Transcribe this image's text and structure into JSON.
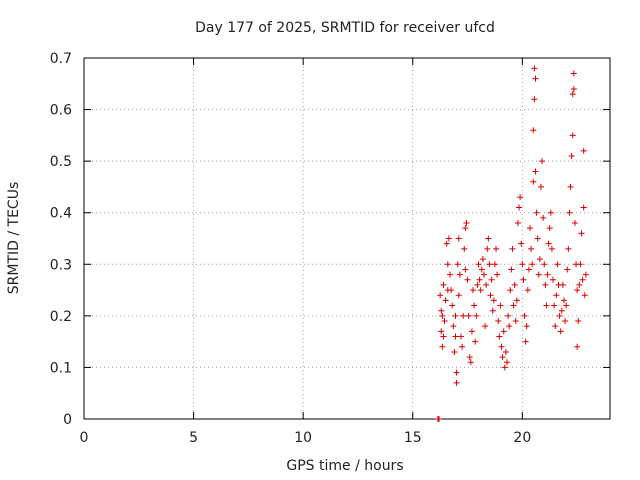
{
  "chart_data": {
    "type": "scatter",
    "title": "Day 177 of 2025, SRMTID for receiver ufcd",
    "xlabel": "GPS time / hours",
    "ylabel": "SRMTID / TECUs",
    "xlim": [
      0,
      24
    ],
    "ylim": [
      0,
      0.7
    ],
    "xticks": [
      0,
      5,
      10,
      15,
      20
    ],
    "xtick_labels": [
      "0",
      "5",
      "10",
      "15",
      "20"
    ],
    "yticks": [
      0,
      0.1,
      0.2,
      0.3,
      0.4,
      0.5,
      0.6,
      0.7
    ],
    "ytick_labels": [
      "0",
      "0.1",
      "0.2",
      "0.3",
      "0.4",
      "0.5",
      "0.6",
      "0.7"
    ],
    "grid": true,
    "marker": "+",
    "color": "#dd0000",
    "series": [
      {
        "name": "SRMTID",
        "points": [
          [
            16.15,
            0.0
          ],
          [
            16.2,
            0.0
          ],
          [
            16.25,
            0.24
          ],
          [
            16.3,
            0.21
          ],
          [
            16.3,
            0.17
          ],
          [
            16.35,
            0.2
          ],
          [
            16.35,
            0.14
          ],
          [
            16.4,
            0.26
          ],
          [
            16.4,
            0.16
          ],
          [
            16.45,
            0.19
          ],
          [
            16.5,
            0.23
          ],
          [
            16.55,
            0.34
          ],
          [
            16.6,
            0.3
          ],
          [
            16.6,
            0.25
          ],
          [
            16.65,
            0.35
          ],
          [
            16.7,
            0.28
          ],
          [
            16.75,
            0.25
          ],
          [
            16.8,
            0.22
          ],
          [
            16.85,
            0.18
          ],
          [
            16.9,
            0.13
          ],
          [
            16.95,
            0.16
          ],
          [
            16.95,
            0.2
          ],
          [
            17.0,
            0.07
          ],
          [
            17.0,
            0.09
          ],
          [
            17.05,
            0.3
          ],
          [
            17.1,
            0.35
          ],
          [
            17.1,
            0.24
          ],
          [
            17.15,
            0.28
          ],
          [
            17.2,
            0.16
          ],
          [
            17.25,
            0.14
          ],
          [
            17.3,
            0.2
          ],
          [
            17.35,
            0.33
          ],
          [
            17.4,
            0.37
          ],
          [
            17.4,
            0.29
          ],
          [
            17.45,
            0.38
          ],
          [
            17.5,
            0.27
          ],
          [
            17.55,
            0.2
          ],
          [
            17.6,
            0.12
          ],
          [
            17.65,
            0.11
          ],
          [
            17.7,
            0.17
          ],
          [
            17.75,
            0.25
          ],
          [
            17.8,
            0.22
          ],
          [
            17.85,
            0.15
          ],
          [
            17.9,
            0.2
          ],
          [
            17.95,
            0.26
          ],
          [
            18.0,
            0.3
          ],
          [
            18.05,
            0.27
          ],
          [
            18.1,
            0.25
          ],
          [
            18.15,
            0.29
          ],
          [
            18.2,
            0.31
          ],
          [
            18.25,
            0.28
          ],
          [
            18.3,
            0.18
          ],
          [
            18.35,
            0.26
          ],
          [
            18.4,
            0.33
          ],
          [
            18.45,
            0.35
          ],
          [
            18.5,
            0.3
          ],
          [
            18.55,
            0.24
          ],
          [
            18.6,
            0.27
          ],
          [
            18.65,
            0.21
          ],
          [
            18.7,
            0.23
          ],
          [
            18.75,
            0.3
          ],
          [
            18.8,
            0.33
          ],
          [
            18.85,
            0.28
          ],
          [
            18.9,
            0.19
          ],
          [
            18.95,
            0.16
          ],
          [
            19.0,
            0.22
          ],
          [
            19.05,
            0.14
          ],
          [
            19.1,
            0.12
          ],
          [
            19.15,
            0.17
          ],
          [
            19.2,
            0.1
          ],
          [
            19.25,
            0.13
          ],
          [
            19.3,
            0.11
          ],
          [
            19.35,
            0.2
          ],
          [
            19.4,
            0.18
          ],
          [
            19.45,
            0.25
          ],
          [
            19.5,
            0.29
          ],
          [
            19.55,
            0.33
          ],
          [
            19.6,
            0.22
          ],
          [
            19.65,
            0.26
          ],
          [
            19.7,
            0.19
          ],
          [
            19.75,
            0.23
          ],
          [
            19.8,
            0.38
          ],
          [
            19.85,
            0.41
          ],
          [
            19.9,
            0.43
          ],
          [
            19.95,
            0.34
          ],
          [
            20.0,
            0.3
          ],
          [
            20.05,
            0.27
          ],
          [
            20.1,
            0.2
          ],
          [
            20.15,
            0.15
          ],
          [
            20.2,
            0.18
          ],
          [
            20.25,
            0.25
          ],
          [
            20.3,
            0.29
          ],
          [
            20.35,
            0.37
          ],
          [
            20.4,
            0.33
          ],
          [
            20.45,
            0.3
          ],
          [
            20.5,
            0.46
          ],
          [
            20.5,
            0.56
          ],
          [
            20.55,
            0.62
          ],
          [
            20.55,
            0.68
          ],
          [
            20.6,
            0.66
          ],
          [
            20.6,
            0.48
          ],
          [
            20.65,
            0.4
          ],
          [
            20.7,
            0.35
          ],
          [
            20.75,
            0.28
          ],
          [
            20.8,
            0.31
          ],
          [
            20.85,
            0.45
          ],
          [
            20.9,
            0.5
          ],
          [
            20.95,
            0.39
          ],
          [
            21.0,
            0.3
          ],
          [
            21.05,
            0.26
          ],
          [
            21.1,
            0.22
          ],
          [
            21.15,
            0.28
          ],
          [
            21.2,
            0.34
          ],
          [
            21.25,
            0.37
          ],
          [
            21.3,
            0.4
          ],
          [
            21.35,
            0.33
          ],
          [
            21.4,
            0.27
          ],
          [
            21.45,
            0.22
          ],
          [
            21.5,
            0.18
          ],
          [
            21.55,
            0.24
          ],
          [
            21.6,
            0.3
          ],
          [
            21.65,
            0.26
          ],
          [
            21.7,
            0.2
          ],
          [
            21.75,
            0.17
          ],
          [
            21.8,
            0.21
          ],
          [
            21.85,
            0.26
          ],
          [
            21.9,
            0.23
          ],
          [
            21.95,
            0.19
          ],
          [
            22.0,
            0.22
          ],
          [
            22.05,
            0.29
          ],
          [
            22.1,
            0.33
          ],
          [
            22.15,
            0.4
          ],
          [
            22.2,
            0.45
          ],
          [
            22.25,
            0.51
          ],
          [
            22.3,
            0.55
          ],
          [
            22.3,
            0.63
          ],
          [
            22.35,
            0.67
          ],
          [
            22.35,
            0.64
          ],
          [
            22.4,
            0.38
          ],
          [
            22.45,
            0.3
          ],
          [
            22.5,
            0.25
          ],
          [
            22.5,
            0.14
          ],
          [
            22.55,
            0.19
          ],
          [
            22.6,
            0.26
          ],
          [
            22.65,
            0.3
          ],
          [
            22.7,
            0.36
          ],
          [
            22.75,
            0.27
          ],
          [
            22.8,
            0.41
          ],
          [
            22.8,
            0.52
          ],
          [
            22.85,
            0.24
          ],
          [
            22.9,
            0.28
          ]
        ]
      }
    ]
  }
}
